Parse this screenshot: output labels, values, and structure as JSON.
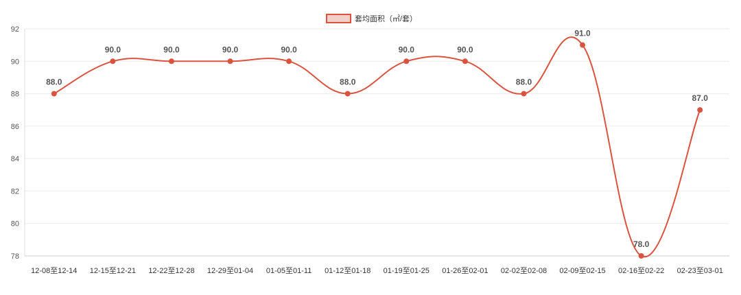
{
  "chart_data": {
    "type": "line",
    "categories": [
      "12-08至12-14",
      "12-15至12-21",
      "12-22至12-28",
      "12-29至01-04",
      "01-05至01-11",
      "01-12至01-18",
      "01-19至01-25",
      "01-26至02-01",
      "02-02至02-08",
      "02-09至02-15",
      "02-16至02-22",
      "02-23至03-01"
    ],
    "series": [
      {
        "name": "套均面积（㎡/套）",
        "values": [
          88.0,
          90.0,
          90.0,
          90.0,
          90.0,
          88.0,
          90.0,
          90.0,
          88.0,
          91.0,
          78.0,
          87.0
        ],
        "color": "#d9533f"
      }
    ],
    "data_labels": [
      "88.0",
      "90.0",
      "90.0",
      "90.0",
      "90.0",
      "88.0",
      "90.0",
      "90.0",
      "88.0",
      "91.0",
      "78.0",
      "87.0"
    ],
    "y_ticks": [
      "78",
      "80",
      "82",
      "84",
      "86",
      "88",
      "90",
      "92"
    ],
    "ylim": [
      78,
      92
    ],
    "legend_position": "top-center",
    "grid": true,
    "smooth": true
  }
}
